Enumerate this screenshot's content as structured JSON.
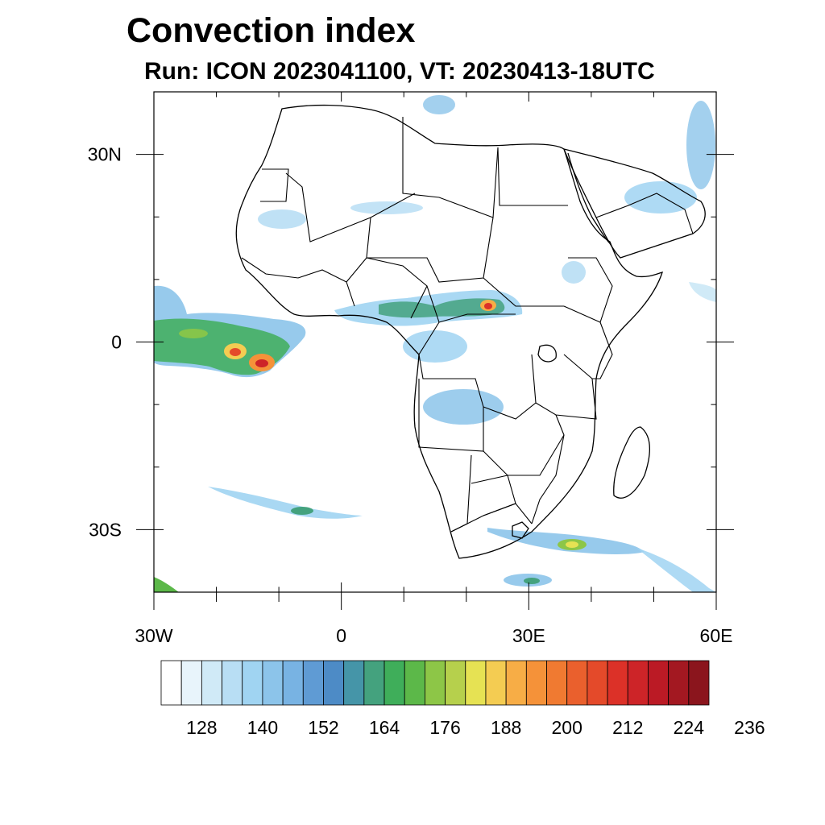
{
  "title": "Convection index",
  "subtitle": "Run: ICON 2023041100,  VT: 20230413-18UTC",
  "map": {
    "lon_range": [
      -30,
      60
    ],
    "lat_range": [
      -40,
      40
    ],
    "lat_labels": [
      {
        "lat": 30,
        "text": "30N"
      },
      {
        "lat": 0,
        "text": "0"
      },
      {
        "lat": -30,
        "text": "30S"
      }
    ],
    "lon_labels": [
      {
        "lon": -30,
        "text": "30W"
      },
      {
        "lon": 0,
        "text": "0"
      },
      {
        "lon": 30,
        "text": "30E"
      },
      {
        "lon": 60,
        "text": "60E"
      }
    ]
  },
  "colorbar": {
    "colors": [
      "#ffffff",
      "#e8f4fb",
      "#d0eaf7",
      "#b8def4",
      "#a0d4f2",
      "#8cc4ea",
      "#78b3e3",
      "#5f9bd4",
      "#4d8bc6",
      "#4595a8",
      "#44a27e",
      "#3fae5a",
      "#5cb849",
      "#8dc647",
      "#b6d04c",
      "#e6e253",
      "#f4cc52",
      "#f7ad46",
      "#f59239",
      "#f07a31",
      "#ea602d",
      "#e44a2a",
      "#dc3128",
      "#cd2428",
      "#bb1a25",
      "#a31821",
      "#8b151d"
    ],
    "tick_labels": [
      "128",
      "140",
      "152",
      "164",
      "176",
      "188",
      "200",
      "212",
      "224",
      "236"
    ]
  }
}
